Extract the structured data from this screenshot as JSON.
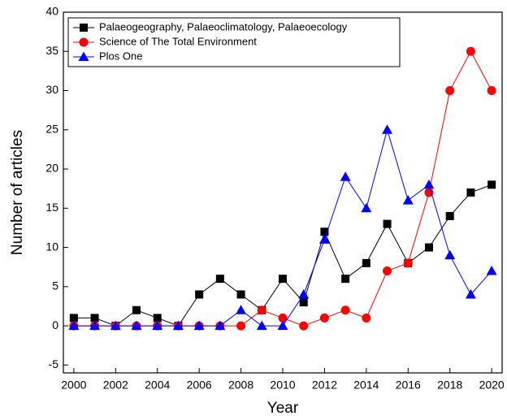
{
  "chart_data": {
    "type": "line",
    "x_label": "Year",
    "y_label": "Number of articles",
    "x": [
      2000,
      2001,
      2002,
      2003,
      2004,
      2005,
      2006,
      2007,
      2008,
      2009,
      2010,
      2011,
      2012,
      2013,
      2014,
      2015,
      2016,
      2017,
      2018,
      2019,
      2020
    ],
    "series": [
      {
        "name": "Palaeogeography, Palaeoclimatology, Palaeoecology",
        "color": "#000000",
        "marker": "square",
        "values": [
          1,
          1,
          0,
          2,
          1,
          0,
          4,
          6,
          4,
          2,
          6,
          3,
          12,
          6,
          8,
          13,
          8,
          10,
          14,
          17,
          18
        ]
      },
      {
        "name": "Science of The Total Environment",
        "color": "#ff0000",
        "marker": "circle",
        "values": [
          0,
          0,
          0,
          0,
          0,
          0,
          0,
          0,
          0,
          2,
          1,
          0,
          1,
          2,
          1,
          7,
          8,
          17,
          30,
          35,
          30
        ]
      },
      {
        "name": "Plos One",
        "color": "#0000ff",
        "marker": "triangle",
        "values": [
          0,
          0,
          0,
          0,
          0,
          0,
          0,
          0,
          2,
          0,
          0,
          4,
          11,
          19,
          15,
          25,
          16,
          18,
          9,
          4,
          7
        ]
      }
    ],
    "xlim": [
      1999.5,
      2020.5
    ],
    "xticks": [
      2000,
      2002,
      2004,
      2006,
      2008,
      2010,
      2012,
      2014,
      2016,
      2018,
      2020
    ],
    "ylim": [
      -6,
      40
    ],
    "yticks": [
      -5,
      0,
      5,
      10,
      15,
      20,
      25,
      30,
      35,
      40
    ],
    "legend": "top-left"
  }
}
